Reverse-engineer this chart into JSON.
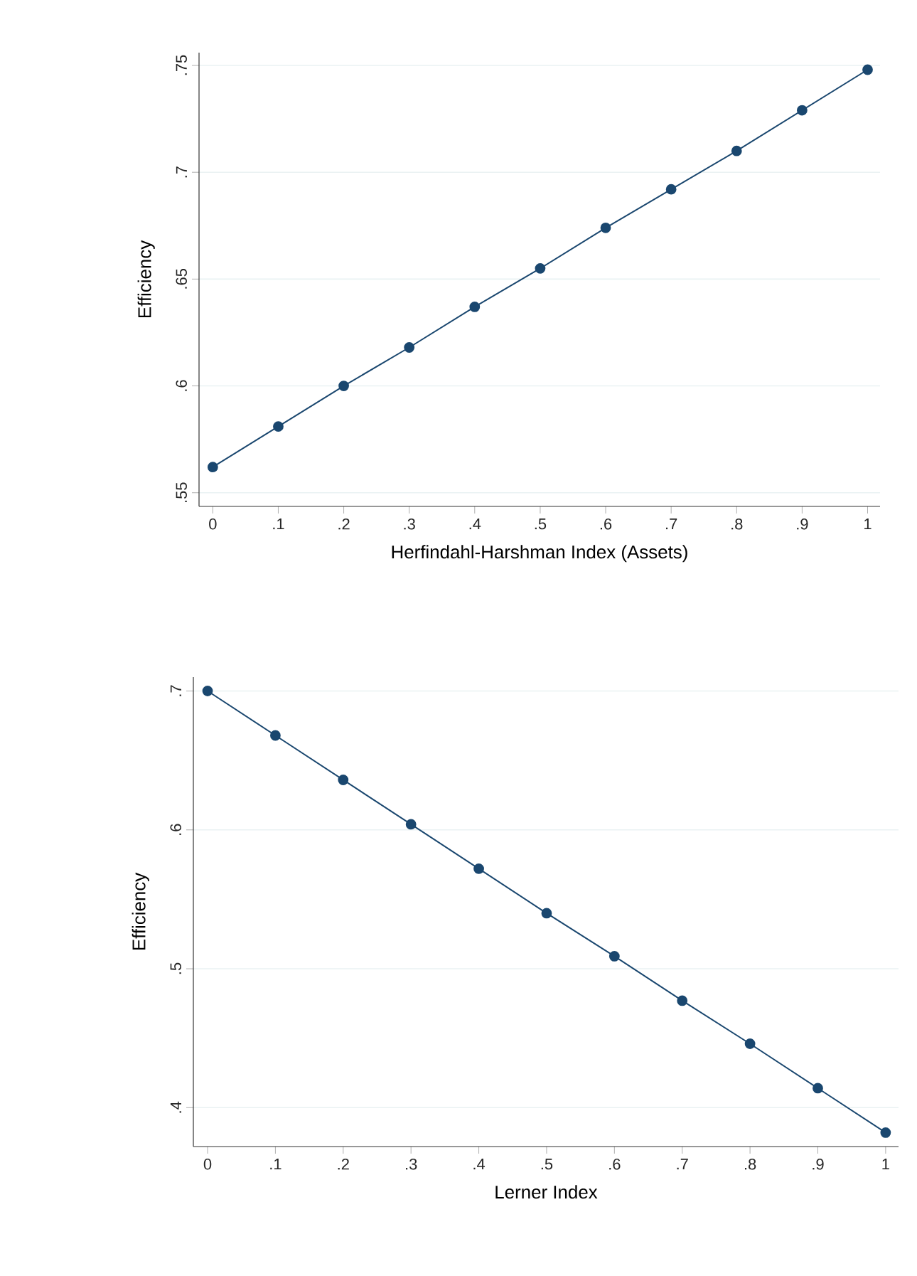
{
  "chart_data": [
    {
      "type": "line",
      "xlabel": "Herfindahl-Harshman  Index  (Assets)",
      "ylabel": "Efficiency",
      "x": [
        0,
        0.1,
        0.2,
        0.3,
        0.4,
        0.5,
        0.6,
        0.7,
        0.8,
        0.9,
        1
      ],
      "series": [
        {
          "color": "#1a476f",
          "values": [
            0.562,
            0.581,
            0.6,
            0.618,
            0.637,
            0.655,
            0.674,
            0.692,
            0.71,
            0.729,
            0.748
          ]
        }
      ],
      "xlim": [
        -0.021,
        1.019
      ],
      "ylim": [
        0.5436,
        0.756
      ],
      "xticks": [
        0,
        {
          "value": 0.1,
          "label": ".1"
        },
        {
          "value": 0.2,
          "label": ".2"
        },
        {
          "value": 0.3,
          "label": ".3"
        },
        {
          "value": 0.4,
          "label": ".4"
        },
        {
          "value": 0.5,
          "label": ".5"
        },
        {
          "value": 0.6,
          "label": ".6"
        },
        {
          "value": 0.7,
          "label": ".7"
        },
        {
          "value": 0.8,
          "label": ".8"
        },
        {
          "value": 0.9,
          "label": ".9"
        },
        1
      ],
      "yticks": [
        {
          "value": 0.55,
          "label": ".55"
        },
        {
          "value": 0.6,
          "label": ".6"
        },
        {
          "value": 0.65,
          "label": ".65"
        },
        {
          "value": 0.7,
          "label": ".7"
        },
        {
          "value": 0.75,
          "label": ".75"
        }
      ],
      "grid": "y",
      "marker": "circle",
      "line_style": "solid"
    },
    {
      "type": "line",
      "xlabel": "Lerner Index",
      "ylabel": "Efficiency",
      "x": [
        0,
        0.1,
        0.2,
        0.3,
        0.4,
        0.5,
        0.6,
        0.7,
        0.8,
        0.9,
        1
      ],
      "series": [
        {
          "color": "#1a476f",
          "values": [
            0.7,
            0.668,
            0.636,
            0.604,
            0.572,
            0.54,
            0.509,
            0.477,
            0.446,
            0.414,
            0.382
          ]
        }
      ],
      "xlim": [
        -0.021,
        1.019
      ],
      "ylim": [
        0.372,
        0.71
      ],
      "xticks": [
        0,
        {
          "value": 0.1,
          "label": ".1"
        },
        {
          "value": 0.2,
          "label": ".2"
        },
        {
          "value": 0.3,
          "label": ".3"
        },
        {
          "value": 0.4,
          "label": ".4"
        },
        {
          "value": 0.5,
          "label": ".5"
        },
        {
          "value": 0.6,
          "label": ".6"
        },
        {
          "value": 0.7,
          "label": ".7"
        },
        {
          "value": 0.8,
          "label": ".8"
        },
        {
          "value": 0.9,
          "label": ".9"
        },
        1
      ],
      "yticks": [
        {
          "value": 0.4,
          "label": ".4"
        },
        {
          "value": 0.5,
          "label": ".5"
        },
        {
          "value": 0.6,
          "label": ".6"
        },
        {
          "value": 0.7,
          "label": ".7"
        }
      ],
      "grid": "y",
      "marker": "circle",
      "line_style": "solid"
    }
  ]
}
